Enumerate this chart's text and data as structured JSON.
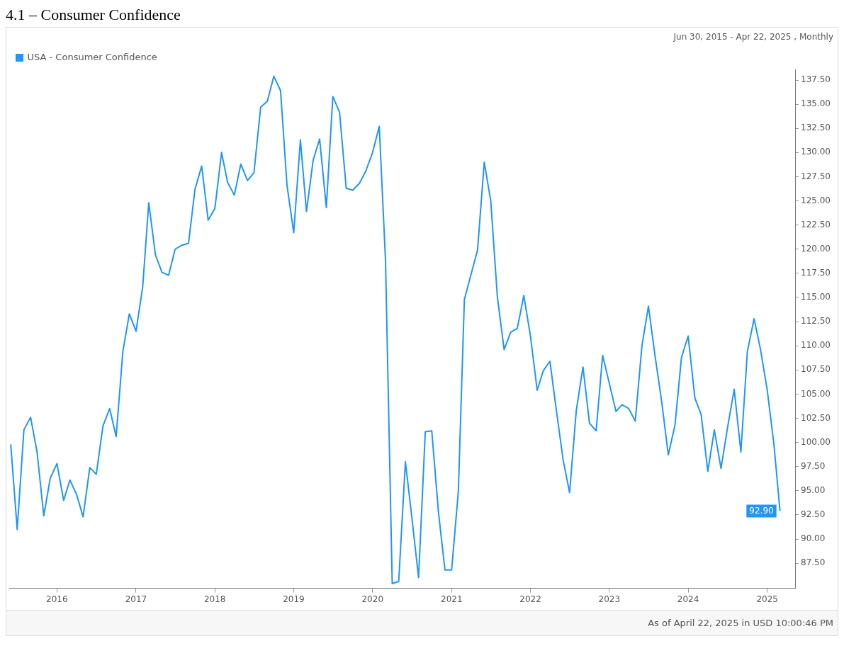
{
  "chart_data": {
    "type": "line",
    "title": "4.1 – Consumer Confidence",
    "subtitle": "Jun 30, 2015 - Apr 22, 2025 , Monthly",
    "annotations": [
      "As of April 22, 2025 in USD 10:00:46 PM"
    ],
    "x": [
      "2015-06",
      "2015-07",
      "2015-08",
      "2015-09",
      "2015-10",
      "2015-11",
      "2015-12",
      "2016-01",
      "2016-02",
      "2016-03",
      "2016-04",
      "2016-05",
      "2016-06",
      "2016-07",
      "2016-08",
      "2016-09",
      "2016-10",
      "2016-11",
      "2016-12",
      "2017-01",
      "2017-02",
      "2017-03",
      "2017-04",
      "2017-05",
      "2017-06",
      "2017-07",
      "2017-08",
      "2017-09",
      "2017-10",
      "2017-11",
      "2017-12",
      "2018-01",
      "2018-02",
      "2018-03",
      "2018-04",
      "2018-05",
      "2018-06",
      "2018-07",
      "2018-08",
      "2018-09",
      "2018-10",
      "2018-11",
      "2018-12",
      "2019-01",
      "2019-02",
      "2019-03",
      "2019-04",
      "2019-05",
      "2019-06",
      "2019-07",
      "2019-08",
      "2019-09",
      "2019-10",
      "2019-11",
      "2019-12",
      "2020-01",
      "2020-02",
      "2020-03",
      "2020-04",
      "2020-05",
      "2020-06",
      "2020-07",
      "2020-08",
      "2020-09",
      "2020-10",
      "2020-11",
      "2020-12",
      "2021-01",
      "2021-02",
      "2021-03",
      "2021-04",
      "2021-05",
      "2021-06",
      "2021-07",
      "2021-08",
      "2021-09",
      "2021-10",
      "2021-11",
      "2021-12",
      "2022-01",
      "2022-02",
      "2022-03",
      "2022-04",
      "2022-05",
      "2022-06",
      "2022-07",
      "2022-08",
      "2022-09",
      "2022-10",
      "2022-11",
      "2022-12",
      "2023-01",
      "2023-02",
      "2023-03",
      "2023-04",
      "2023-05",
      "2023-06",
      "2023-07",
      "2023-08",
      "2023-09",
      "2023-10",
      "2023-11",
      "2023-12",
      "2024-01",
      "2024-02",
      "2024-03",
      "2024-04",
      "2024-05",
      "2024-06",
      "2024-07",
      "2024-08",
      "2024-09",
      "2024-10",
      "2024-11",
      "2024-12",
      "2025-01",
      "2025-02",
      "2025-03"
    ],
    "series": [
      {
        "name": "USA - Consumer Confidence",
        "color": "#2196f3",
        "values": [
          99.8,
          91.0,
          101.3,
          102.6,
          99.0,
          92.4,
          96.3,
          97.8,
          94.0,
          96.1,
          94.6,
          92.3,
          97.4,
          96.7,
          101.7,
          103.5,
          100.6,
          109.4,
          113.3,
          111.5,
          116.1,
          124.8,
          119.4,
          117.6,
          117.3,
          120.0,
          120.4,
          120.6,
          126.2,
          128.6,
          123.0,
          124.2,
          130.0,
          126.9,
          125.6,
          128.8,
          127.1,
          127.9,
          134.7,
          135.3,
          137.9,
          136.4,
          126.6,
          121.7,
          131.3,
          123.9,
          129.2,
          131.4,
          124.3,
          135.8,
          134.2,
          126.3,
          126.1,
          126.8,
          128.1,
          130.0,
          132.7,
          118.8,
          85.4,
          85.6,
          98.0,
          92.2,
          86.0,
          101.1,
          101.2,
          92.8,
          86.8,
          86.8,
          94.9,
          114.8,
          117.4,
          119.9,
          129.0,
          125.0,
          115.0,
          109.6,
          111.4,
          111.8,
          115.2,
          111.0,
          105.4,
          107.4,
          108.4,
          103.3,
          98.2,
          94.8,
          103.3,
          107.8,
          102.0,
          101.2,
          109.0,
          106.1,
          103.2,
          103.9,
          103.5,
          102.2,
          110.0,
          114.1,
          108.9,
          104.1,
          98.7,
          101.8,
          108.8,
          111.0,
          104.6,
          102.9,
          97.0,
          101.3,
          97.3,
          101.5,
          105.5,
          99.0,
          109.4,
          112.8,
          109.6,
          105.4,
          99.8,
          92.9
        ],
        "value_labels": [
          null,
          null,
          null,
          null,
          null,
          null,
          null,
          null,
          null,
          null,
          null,
          null,
          null,
          null,
          null,
          null,
          null,
          null,
          null,
          null,
          null,
          null,
          null,
          null,
          null,
          null,
          null,
          null,
          null,
          null,
          null,
          null,
          null,
          null,
          null,
          null,
          null,
          null,
          null,
          null,
          null,
          null,
          null,
          null,
          null,
          null,
          null,
          null,
          null,
          null,
          null,
          null,
          null,
          null,
          null,
          null,
          null,
          null,
          null,
          null,
          null,
          null,
          null,
          null,
          null,
          null,
          null,
          null,
          null,
          null,
          null,
          null,
          null,
          null,
          null,
          null,
          null,
          null,
          null,
          null,
          null,
          null,
          null,
          null,
          null,
          null,
          null,
          null,
          null,
          null,
          null,
          null,
          null,
          null,
          null,
          null,
          null,
          null,
          null,
          null,
          null,
          null,
          null,
          null,
          null,
          null,
          null,
          null,
          null,
          null,
          null,
          null,
          null,
          null,
          null,
          null,
          null,
          "92.90"
        ]
      }
    ],
    "xlim": [
      "2015-05-25",
      "2025-05-10"
    ],
    "xticks": [
      "2016",
      "2017",
      "2018",
      "2019",
      "2020",
      "2021",
      "2022",
      "2023",
      "2024",
      "2025"
    ],
    "ylim": [
      84.9,
      138.6
    ],
    "yticks": [
      {
        "value": 87.5,
        "label": "87.50"
      },
      {
        "value": 90,
        "label": "90.00"
      },
      {
        "value": 92.5,
        "label": "92.50"
      },
      {
        "value": 95,
        "label": "95.00"
      },
      {
        "value": 97.5,
        "label": "97.50"
      },
      {
        "value": 100,
        "label": "100.00"
      },
      {
        "value": 102.5,
        "label": "102.50"
      },
      {
        "value": 105,
        "label": "105.00"
      },
      {
        "value": 107.5,
        "label": "107.50"
      },
      {
        "value": 110,
        "label": "110.00"
      },
      {
        "value": 112.5,
        "label": "112.50"
      },
      {
        "value": 115,
        "label": "115.00"
      },
      {
        "value": 117.5,
        "label": "117.50"
      },
      {
        "value": 120,
        "label": "120.00"
      },
      {
        "value": 122.5,
        "label": "122.50"
      },
      {
        "value": 125,
        "label": "125.00"
      },
      {
        "value": 127.5,
        "label": "127.50"
      },
      {
        "value": 130,
        "label": "130.00"
      },
      {
        "value": 132.5,
        "label": "132.50"
      },
      {
        "value": 135,
        "label": "135.00"
      },
      {
        "value": 137.5,
        "label": "137.50"
      }
    ],
    "legend": "top left"
  }
}
